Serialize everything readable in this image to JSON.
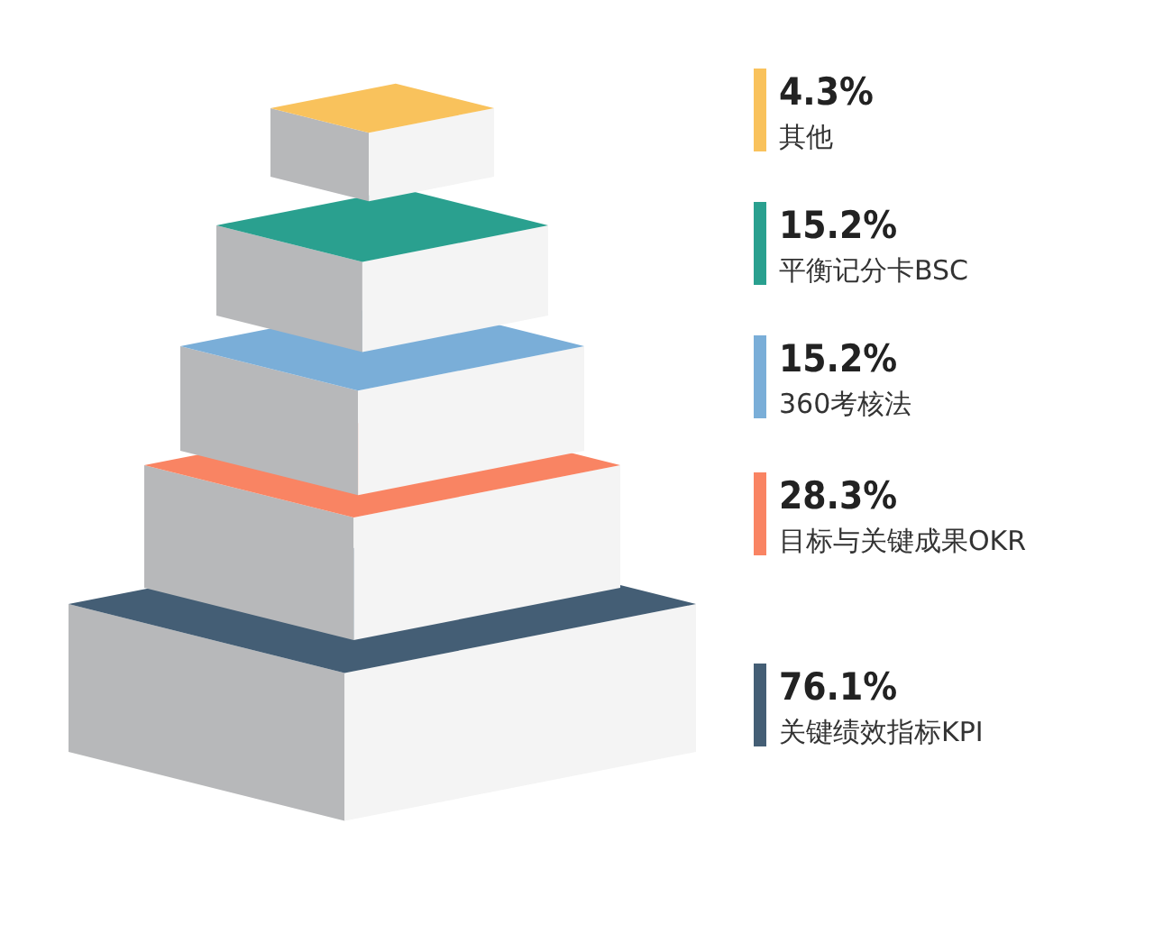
{
  "chart_data": {
    "type": "other",
    "categories": [
      "其他",
      "平衡记分卡BSC",
      "360考核法",
      "目标与关键成果OKR",
      "关键绩效指标KPI"
    ],
    "values": [
      4.3,
      15.2,
      15.2,
      28.3,
      76.1
    ],
    "value_labels": [
      "4.3%",
      "15.2%",
      "15.2%",
      "28.3%",
      "76.1%"
    ],
    "colors": [
      "#f9c25c",
      "#2aa08f",
      "#7aaed8",
      "#f98463",
      "#445e75"
    ]
  }
}
